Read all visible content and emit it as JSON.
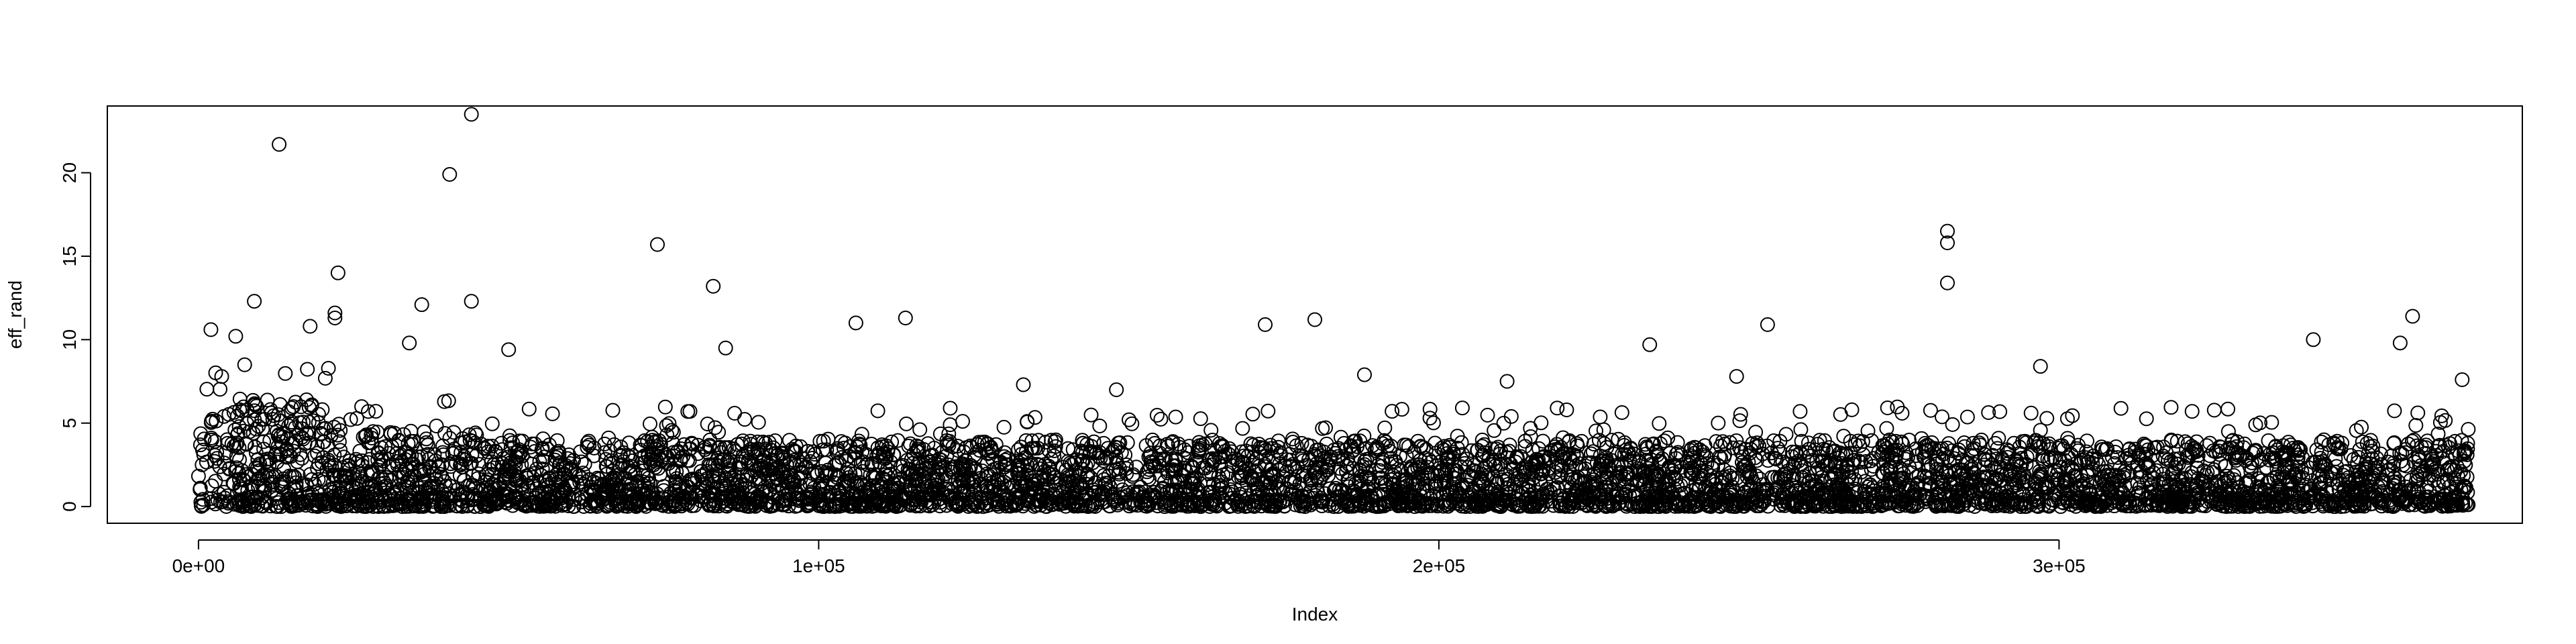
{
  "chart_data": {
    "type": "scatter",
    "title": "",
    "xlabel": "Index",
    "ylabel": "eff_rand",
    "xlim": [
      -14700,
      374700
    ],
    "ylim": [
      -1.0,
      24.0
    ],
    "x_ticks": [
      0,
      100000,
      200000,
      300000
    ],
    "x_tick_labels": [
      "0e+00",
      "1e+05",
      "2e+05",
      "3e+05"
    ],
    "y_ticks": [
      0,
      5,
      10,
      15,
      20
    ],
    "y_tick_labels": [
      "0",
      "5",
      "10",
      "15",
      "20"
    ],
    "grid": false,
    "legend": false,
    "marker": "open-circle",
    "color": "#000000",
    "n_points_approx": 367000,
    "outliers": [
      {
        "x": 13000,
        "y": 21.7
      },
      {
        "x": 40500,
        "y": 19.9
      },
      {
        "x": 44000,
        "y": 23.5
      },
      {
        "x": 74000,
        "y": 15.7
      },
      {
        "x": 83000,
        "y": 13.2
      },
      {
        "x": 282000,
        "y": 16.5
      },
      {
        "x": 282000,
        "y": 15.8
      },
      {
        "x": 282000,
        "y": 13.4
      },
      {
        "x": 9000,
        "y": 12.3
      },
      {
        "x": 36000,
        "y": 12.1
      },
      {
        "x": 44000,
        "y": 12.3
      },
      {
        "x": 22500,
        "y": 14.0
      },
      {
        "x": 22000,
        "y": 11.6
      },
      {
        "x": 22000,
        "y": 11.3
      },
      {
        "x": 106000,
        "y": 11.0
      },
      {
        "x": 114000,
        "y": 11.3
      },
      {
        "x": 172000,
        "y": 10.9
      },
      {
        "x": 180000,
        "y": 11.2
      },
      {
        "x": 253000,
        "y": 10.9
      },
      {
        "x": 357000,
        "y": 11.4
      },
      {
        "x": 2000,
        "y": 10.6
      },
      {
        "x": 6000,
        "y": 10.2
      },
      {
        "x": 18000,
        "y": 10.8
      },
      {
        "x": 34000,
        "y": 9.8
      },
      {
        "x": 50000,
        "y": 9.4
      },
      {
        "x": 85000,
        "y": 9.5
      },
      {
        "x": 234000,
        "y": 9.7
      },
      {
        "x": 341000,
        "y": 10.0
      },
      {
        "x": 355000,
        "y": 9.8
      },
      {
        "x": 188000,
        "y": 7.9
      },
      {
        "x": 211000,
        "y": 7.5
      },
      {
        "x": 248000,
        "y": 7.8
      },
      {
        "x": 297000,
        "y": 8.4
      },
      {
        "x": 365000,
        "y": 7.6
      },
      {
        "x": 133000,
        "y": 7.3
      },
      {
        "x": 148000,
        "y": 7.0
      }
    ],
    "density_profile": [
      {
        "x_from": 0,
        "x_to": 23000,
        "typical_max": 6.5
      },
      {
        "x_from": 23000,
        "x_to": 45000,
        "typical_max": 4.5
      },
      {
        "x_from": 45000,
        "x_to": 366000,
        "typical_max": 4.0
      }
    ]
  }
}
